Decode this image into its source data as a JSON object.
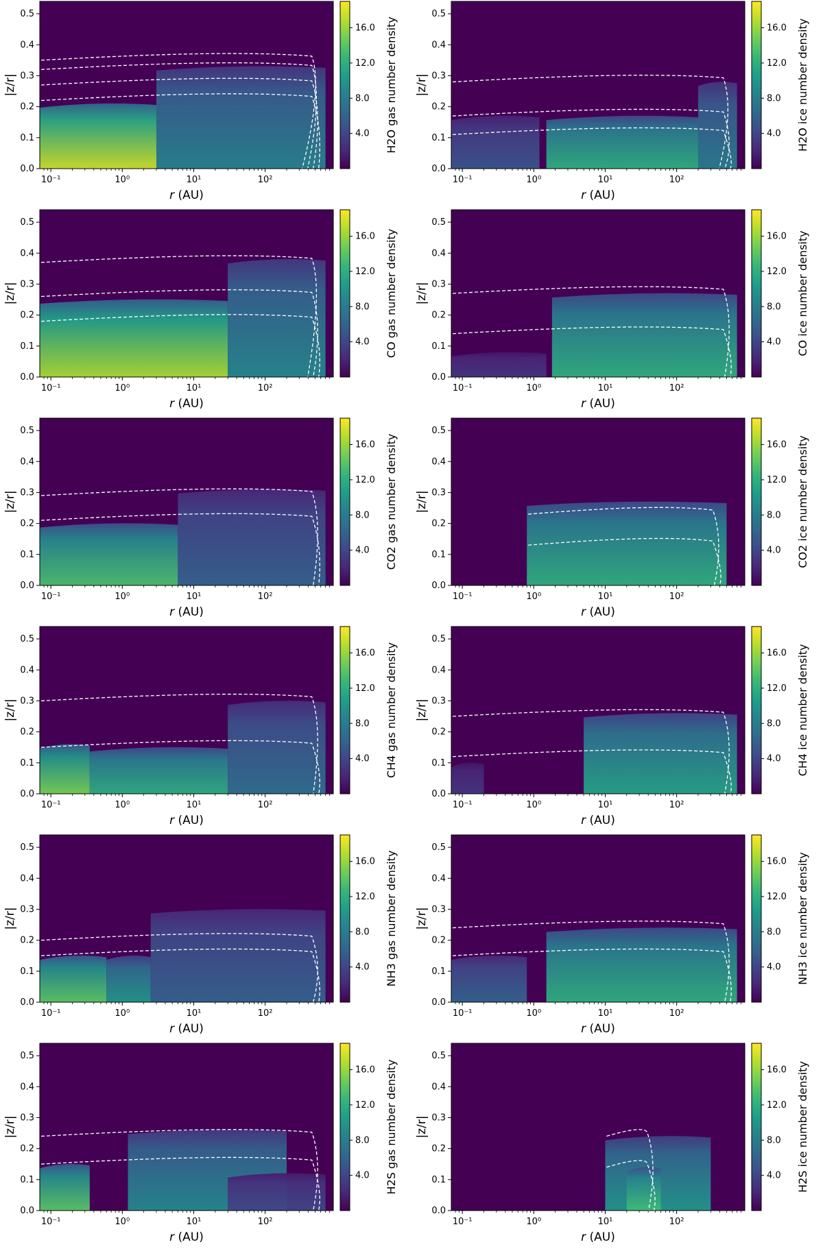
{
  "figure": {
    "colormap": [
      "#440154",
      "#482878",
      "#3e4a89",
      "#31688e",
      "#26828e",
      "#1f9e89",
      "#35b779",
      "#6ece58",
      "#b5de2b",
      "#fde725"
    ],
    "contour_color": "#ffffff",
    "background_color": "#440154"
  },
  "chart_data": [
    {
      "type": "heatmap",
      "species": "H2O",
      "phase": "gas",
      "colorbar_label": "H2O gas number density",
      "xlabel": "r (AU)",
      "ylabel": "|z/r|",
      "x_scale": "log",
      "xlim": [
        0.07,
        900
      ],
      "ylim": [
        0,
        0.54
      ],
      "x_ticks": [
        "10⁻¹",
        "10⁰",
        "10¹",
        "10²"
      ],
      "y_ticks": [
        "0.0",
        "0.1",
        "0.2",
        "0.3",
        "0.4",
        "0.5"
      ],
      "colorbar_range": [
        0,
        19
      ],
      "colorbar_ticks": [
        "4.0",
        "8.0",
        "12.0",
        "16.0"
      ],
      "regions": [
        {
          "r_range": [
            0.07,
            3
          ],
          "z_top": 0.21,
          "peak": 17.5
        },
        {
          "r_range": [
            3,
            700
          ],
          "z_top": 0.33,
          "peak": 8.5
        }
      ],
      "contour_top_z": [
        0.22,
        0.27,
        0.32,
        0.35
      ]
    },
    {
      "type": "heatmap",
      "species": "H2O",
      "phase": "ice",
      "colorbar_label": "H2O ice number density",
      "xlabel": "r (AU)",
      "ylabel": "|z/r|",
      "x_scale": "log",
      "xlim": [
        0.07,
        900
      ],
      "ylim": [
        0,
        0.54
      ],
      "x_ticks": [
        "10⁻¹",
        "10⁰",
        "10¹",
        "10²"
      ],
      "y_ticks": [
        "0.0",
        "0.1",
        "0.2",
        "0.3",
        "0.4",
        "0.5"
      ],
      "colorbar_range": [
        0,
        19
      ],
      "colorbar_ticks": [
        "4.0",
        "8.0",
        "12.0",
        "16.0"
      ],
      "regions": [
        {
          "r_range": [
            0.07,
            1.2
          ],
          "z_top": 0.17,
          "peak": 5
        },
        {
          "r_range": [
            1.5,
            200
          ],
          "z_top": 0.17,
          "peak": 12
        },
        {
          "r_range": [
            200,
            700
          ],
          "z_top": 0.28,
          "peak": 8
        }
      ],
      "contour_top_z": [
        0.11,
        0.17,
        0.28
      ]
    },
    {
      "type": "heatmap",
      "species": "CO",
      "phase": "gas",
      "colorbar_label": "CO gas number density",
      "xlabel": "r (AU)",
      "ylabel": "|z/r|",
      "x_scale": "log",
      "xlim": [
        0.07,
        900
      ],
      "ylim": [
        0,
        0.54
      ],
      "x_ticks": [
        "10⁻¹",
        "10⁰",
        "10¹",
        "10²"
      ],
      "y_ticks": [
        "0.0",
        "0.1",
        "0.2",
        "0.3",
        "0.4",
        "0.5"
      ],
      "colorbar_range": [
        0,
        19
      ],
      "colorbar_ticks": [
        "4.0",
        "8.0",
        "12.0",
        "16.0"
      ],
      "regions": [
        {
          "r_range": [
            0.07,
            30
          ],
          "z_top": 0.25,
          "peak": 16.5
        },
        {
          "r_range": [
            30,
            700
          ],
          "z_top": 0.38,
          "peak": 9
        }
      ],
      "contour_top_z": [
        0.18,
        0.26,
        0.37
      ]
    },
    {
      "type": "heatmap",
      "species": "CO",
      "phase": "ice",
      "colorbar_label": "CO ice number density",
      "xlabel": "r (AU)",
      "ylabel": "|z/r|",
      "x_scale": "log",
      "xlim": [
        0.07,
        900
      ],
      "ylim": [
        0,
        0.54
      ],
      "x_ticks": [
        "10⁻¹",
        "10⁰",
        "10¹",
        "10²"
      ],
      "y_ticks": [
        "0.0",
        "0.1",
        "0.2",
        "0.3",
        "0.4",
        "0.5"
      ],
      "colorbar_range": [
        0,
        19
      ],
      "colorbar_ticks": [
        "4.0",
        "8.0",
        "12.0",
        "16.0"
      ],
      "regions": [
        {
          "r_range": [
            0.07,
            1.5
          ],
          "z_top": 0.08,
          "peak": 3
        },
        {
          "r_range": [
            1.8,
            700
          ],
          "z_top": 0.27,
          "peak": 12
        }
      ],
      "contour_top_z": [
        0.14,
        0.27
      ]
    },
    {
      "type": "heatmap",
      "species": "CO2",
      "phase": "gas",
      "colorbar_label": "CO2 gas number density",
      "xlabel": "r (AU)",
      "ylabel": "|z/r|",
      "x_scale": "log",
      "xlim": [
        0.07,
        900
      ],
      "ylim": [
        0,
        0.54
      ],
      "x_ticks": [
        "10⁻¹",
        "10⁰",
        "10¹",
        "10²"
      ],
      "y_ticks": [
        "0.0",
        "0.1",
        "0.2",
        "0.3",
        "0.4",
        "0.5"
      ],
      "colorbar_range": [
        0,
        19
      ],
      "colorbar_ticks": [
        "4.0",
        "8.0",
        "12.0",
        "16.0"
      ],
      "regions": [
        {
          "r_range": [
            0.07,
            6
          ],
          "z_top": 0.2,
          "peak": 13.5
        },
        {
          "r_range": [
            6,
            700
          ],
          "z_top": 0.31,
          "peak": 6
        }
      ],
      "contour_top_z": [
        0.21,
        0.29
      ]
    },
    {
      "type": "heatmap",
      "species": "CO2",
      "phase": "ice",
      "colorbar_label": "CO2 ice number density",
      "xlabel": "r (AU)",
      "ylabel": "|z/r|",
      "x_scale": "log",
      "xlim": [
        0.07,
        900
      ],
      "ylim": [
        0,
        0.54
      ],
      "x_ticks": [
        "10⁻¹",
        "10⁰",
        "10¹",
        "10²"
      ],
      "y_ticks": [
        "0.0",
        "0.1",
        "0.2",
        "0.3",
        "0.4",
        "0.5"
      ],
      "colorbar_range": [
        0,
        19
      ],
      "colorbar_ticks": [
        "4.0",
        "8.0",
        "12.0",
        "16.0"
      ],
      "regions": [
        {
          "r_range": [
            0.8,
            500
          ],
          "z_top": 0.27,
          "peak": 12
        }
      ],
      "contour_top_z": [
        0.13,
        0.23
      ]
    },
    {
      "type": "heatmap",
      "species": "CH4",
      "phase": "gas",
      "colorbar_label": "CH4 gas number density",
      "xlabel": "r (AU)",
      "ylabel": "|z/r|",
      "x_scale": "log",
      "xlim": [
        0.07,
        900
      ],
      "ylim": [
        0,
        0.54
      ],
      "x_ticks": [
        "10⁻¹",
        "10⁰",
        "10¹",
        "10²"
      ],
      "y_ticks": [
        "0.0",
        "0.1",
        "0.2",
        "0.3",
        "0.4",
        "0.5"
      ],
      "colorbar_range": [
        0,
        19
      ],
      "colorbar_ticks": [
        "4.0",
        "8.0",
        "12.0",
        "16.0"
      ],
      "regions": [
        {
          "r_range": [
            0.07,
            0.35
          ],
          "z_top": 0.16,
          "peak": 15
        },
        {
          "r_range": [
            0.35,
            30
          ],
          "z_top": 0.15,
          "peak": 12
        },
        {
          "r_range": [
            30,
            700
          ],
          "z_top": 0.3,
          "peak": 7
        }
      ],
      "contour_top_z": [
        0.15,
        0.3
      ]
    },
    {
      "type": "heatmap",
      "species": "CH4",
      "phase": "ice",
      "colorbar_label": "CH4 ice number density",
      "xlabel": "r (AU)",
      "ylabel": "|z/r|",
      "x_scale": "log",
      "xlim": [
        0.07,
        900
      ],
      "ylim": [
        0,
        0.54
      ],
      "x_ticks": [
        "10⁻¹",
        "10⁰",
        "10¹",
        "10²"
      ],
      "y_ticks": [
        "0.0",
        "0.1",
        "0.2",
        "0.3",
        "0.4",
        "0.5"
      ],
      "colorbar_range": [
        0,
        19
      ],
      "colorbar_ticks": [
        "4.0",
        "8.0",
        "12.0",
        "16.0"
      ],
      "regions": [
        {
          "r_range": [
            0.07,
            0.2
          ],
          "z_top": 0.1,
          "peak": 3
        },
        {
          "r_range": [
            5,
            700
          ],
          "z_top": 0.26,
          "peak": 11
        }
      ],
      "contour_top_z": [
        0.12,
        0.25
      ]
    },
    {
      "type": "heatmap",
      "species": "NH3",
      "phase": "gas",
      "colorbar_label": "NH3 gas number density",
      "xlabel": "r (AU)",
      "ylabel": "|z/r|",
      "x_scale": "log",
      "xlim": [
        0.07,
        900
      ],
      "ylim": [
        0,
        0.54
      ],
      "x_ticks": [
        "10⁻¹",
        "10⁰",
        "10¹",
        "10²"
      ],
      "y_ticks": [
        "0.0",
        "0.1",
        "0.2",
        "0.3",
        "0.4",
        "0.5"
      ],
      "colorbar_range": [
        0,
        19
      ],
      "colorbar_ticks": [
        "4.0",
        "8.0",
        "12.0",
        "16.0"
      ],
      "regions": [
        {
          "r_range": [
            0.07,
            0.6
          ],
          "z_top": 0.15,
          "peak": 14
        },
        {
          "r_range": [
            0.6,
            2.5
          ],
          "z_top": 0.15,
          "peak": 10
        },
        {
          "r_range": [
            2.5,
            700
          ],
          "z_top": 0.3,
          "peak": 6
        }
      ],
      "contour_top_z": [
        0.15,
        0.2
      ]
    },
    {
      "type": "heatmap",
      "species": "NH3",
      "phase": "ice",
      "colorbar_label": "NH3 ice number density",
      "xlabel": "r (AU)",
      "ylabel": "|z/r|",
      "x_scale": "log",
      "xlim": [
        0.07,
        900
      ],
      "ylim": [
        0,
        0.54
      ],
      "x_ticks": [
        "10⁻¹",
        "10⁰",
        "10¹",
        "10²"
      ],
      "y_ticks": [
        "0.0",
        "0.1",
        "0.2",
        "0.3",
        "0.4",
        "0.5"
      ],
      "colorbar_range": [
        0,
        19
      ],
      "colorbar_ticks": [
        "4.0",
        "8.0",
        "12.0",
        "16.0"
      ],
      "regions": [
        {
          "r_range": [
            0.07,
            0.8
          ],
          "z_top": 0.15,
          "peak": 6
        },
        {
          "r_range": [
            1.5,
            700
          ],
          "z_top": 0.24,
          "peak": 12
        }
      ],
      "contour_top_z": [
        0.15,
        0.24
      ]
    },
    {
      "type": "heatmap",
      "species": "H2S",
      "phase": "gas",
      "colorbar_label": "H2S gas number density",
      "xlabel": "r (AU)",
      "ylabel": "|z/r|",
      "x_scale": "log",
      "xlim": [
        0.07,
        900
      ],
      "ylim": [
        0,
        0.54
      ],
      "x_ticks": [
        "10⁻¹",
        "10⁰",
        "10¹",
        "10²"
      ],
      "y_ticks": [
        "0.0",
        "0.1",
        "0.2",
        "0.3",
        "0.4",
        "0.5"
      ],
      "colorbar_range": [
        0,
        19
      ],
      "colorbar_ticks": [
        "4.0",
        "8.0",
        "12.0",
        "16.0"
      ],
      "regions": [
        {
          "r_range": [
            0.07,
            0.35
          ],
          "z_top": 0.15,
          "peak": 14
        },
        {
          "r_range": [
            1.2,
            200
          ],
          "z_top": 0.26,
          "peak": 9
        },
        {
          "r_range": [
            30,
            700
          ],
          "z_top": 0.12,
          "peak": 4
        }
      ],
      "contour_top_z": [
        0.15,
        0.24
      ]
    },
    {
      "type": "heatmap",
      "species": "H2S",
      "phase": "ice",
      "colorbar_label": "H2S ice number density",
      "xlabel": "r (AU)",
      "ylabel": "|z/r|",
      "x_scale": "log",
      "xlim": [
        0.07,
        900
      ],
      "ylim": [
        0,
        0.54
      ],
      "x_ticks": [
        "10⁻¹",
        "10⁰",
        "10¹",
        "10²"
      ],
      "y_ticks": [
        "0.0",
        "0.1",
        "0.2",
        "0.3",
        "0.4",
        "0.5"
      ],
      "colorbar_range": [
        0,
        19
      ],
      "colorbar_ticks": [
        "4.0",
        "8.0",
        "12.0",
        "16.0"
      ],
      "regions": [
        {
          "r_range": [
            10,
            300
          ],
          "z_top": 0.24,
          "peak": 10
        },
        {
          "r_range": [
            20,
            60
          ],
          "z_top": 0.14,
          "peak": 13
        }
      ],
      "contour_top_z": [
        0.14,
        0.24
      ]
    }
  ]
}
